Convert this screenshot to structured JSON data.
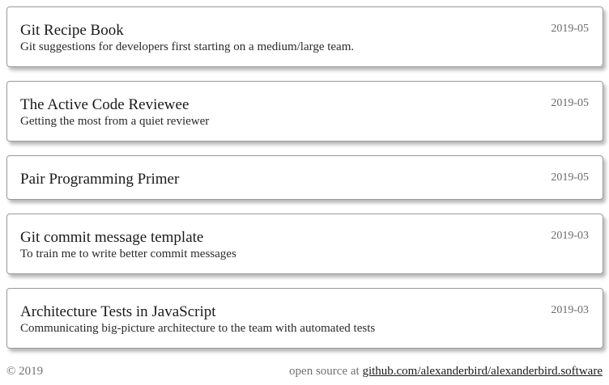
{
  "posts": [
    {
      "title": "Git Recipe Book",
      "subtitle": "Git suggestions for developers first starting on a medium/large team.",
      "date": "2019-05"
    },
    {
      "title": "The Active Code Reviewee",
      "subtitle": "Getting the most from a quiet reviewer",
      "date": "2019-05"
    },
    {
      "title": "Pair Programming Primer",
      "subtitle": "",
      "date": "2019-05"
    },
    {
      "title": "Git commit message template",
      "subtitle": "To train me to write better commit messages",
      "date": "2019-03"
    },
    {
      "title": "Architecture Tests in JavaScript",
      "subtitle": "Communicating big-picture architecture to the team with automated tests",
      "date": "2019-03"
    }
  ],
  "footer": {
    "copyright": "© 2019",
    "source_prefix": "open source at",
    "source_link": "github.com/alexanderbird/alexanderbird.software"
  }
}
